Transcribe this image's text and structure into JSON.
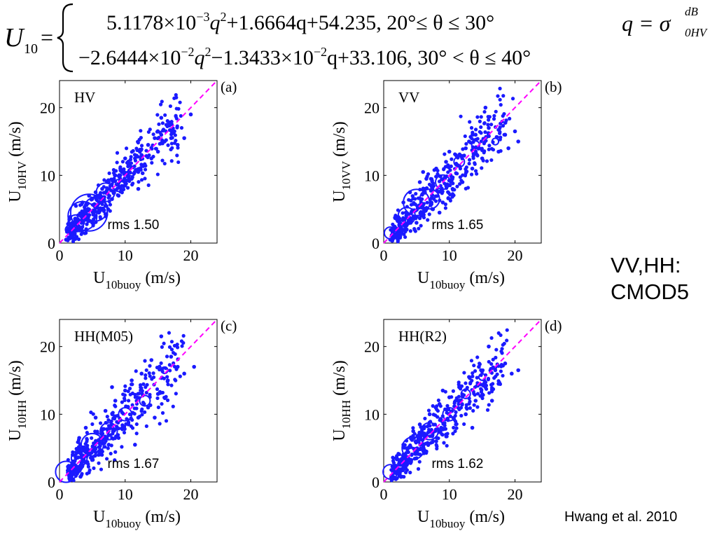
{
  "formula": {
    "lhs_var": "U",
    "lhs_sub": "10",
    "eq": "=",
    "case1": {
      "c1": "5.1178×10",
      "e1": "−3",
      "t1": "q",
      "p1": "2",
      "rest": "+1.6664q+54.235,  20°≤ θ ≤ 30°"
    },
    "case2": {
      "c1": "−2.6444×10",
      "e1": "−2",
      "t1": "q",
      "p1": "2",
      "mid": "−1.3433×10",
      "e2": "−2",
      "rest": "q+33.106,  30° < θ ≤ 40°"
    },
    "qdef": {
      "lhs": "q = σ",
      "sup": "dB",
      "sub": "0HV"
    }
  },
  "chart_data": [
    {
      "type": "scatter",
      "panel": "(a)",
      "inset_title": "HV",
      "xlabel_main": "U",
      "xlabel_sub": "10buoy",
      "xlabel_unit": "(m/s)",
      "ylabel_main": "U",
      "ylabel_sub": "10HV",
      "ylabel_unit": "(m/s)",
      "rms_label": "rms 1.50",
      "xlim": [
        0,
        24
      ],
      "ylim": [
        0,
        24
      ],
      "xticks": [
        0,
        10,
        20
      ],
      "yticks": [
        0,
        10,
        20
      ],
      "spread": 1.5,
      "circles": [
        {
          "x": 4.5,
          "y": 4.5,
          "r": 2.8
        },
        {
          "x": 3.5,
          "y": 4.0,
          "r": 2.2
        },
        {
          "x": 5.5,
          "y": 5.0,
          "r": 1.8
        },
        {
          "x": 7.0,
          "y": 7.5,
          "r": 1.4
        },
        {
          "x": 2.5,
          "y": 3.0,
          "r": 1.2
        },
        {
          "x": 9.0,
          "y": 8.5,
          "r": 0.9
        },
        {
          "x": 1.5,
          "y": 2.0,
          "r": 0.6
        },
        {
          "x": 11.0,
          "y": 10.5,
          "r": 0.6
        }
      ],
      "series": [
        {
          "x": 1.0,
          "y": 0.5
        },
        {
          "x": 2.0,
          "y": 1.0
        },
        {
          "x": 1.5,
          "y": 3.5
        },
        {
          "x": 2.5,
          "y": 5.5
        },
        {
          "x": 3.0,
          "y": 2.0
        },
        {
          "x": 3.5,
          "y": 6.0
        },
        {
          "x": 4.0,
          "y": 1.5
        },
        {
          "x": 4.5,
          "y": 7.0
        },
        {
          "x": 5.0,
          "y": 3.0
        },
        {
          "x": 5.5,
          "y": 7.5
        },
        {
          "x": 6.0,
          "y": 4.5
        },
        {
          "x": 6.5,
          "y": 8.0
        },
        {
          "x": 7.0,
          "y": 5.5
        },
        {
          "x": 7.5,
          "y": 9.0
        },
        {
          "x": 8.0,
          "y": 6.5
        },
        {
          "x": 8.5,
          "y": 10.0
        },
        {
          "x": 9.0,
          "y": 7.0
        },
        {
          "x": 9.5,
          "y": 10.5
        },
        {
          "x": 10.0,
          "y": 8.5
        },
        {
          "x": 10.5,
          "y": 11.5
        },
        {
          "x": 11.0,
          "y": 9.5
        },
        {
          "x": 11.5,
          "y": 12.5
        },
        {
          "x": 12.0,
          "y": 10.5
        },
        {
          "x": 12.5,
          "y": 13.0
        },
        {
          "x": 13.0,
          "y": 11.5
        },
        {
          "x": 13.5,
          "y": 14.5
        },
        {
          "x": 14.0,
          "y": 12.5
        },
        {
          "x": 14.5,
          "y": 15.5
        },
        {
          "x": 15.0,
          "y": 13.5
        },
        {
          "x": 15.5,
          "y": 16.0
        },
        {
          "x": 16.0,
          "y": 15.0
        },
        {
          "x": 16.5,
          "y": 17.5
        },
        {
          "x": 17.0,
          "y": 15.5
        },
        {
          "x": 17.5,
          "y": 16.5
        },
        {
          "x": 18.0,
          "y": 14.5
        },
        {
          "x": 20.0,
          "y": 19.0
        },
        {
          "x": 19.0,
          "y": 15.5
        },
        {
          "x": 15.5,
          "y": 18.5
        },
        {
          "x": 10.0,
          "y": 12.5
        },
        {
          "x": 12.0,
          "y": 8.0
        }
      ]
    },
    {
      "type": "scatter",
      "panel": "(b)",
      "inset_title": "VV",
      "xlabel_main": "U",
      "xlabel_sub": "10buoy",
      "xlabel_unit": "(m/s)",
      "ylabel_main": "U",
      "ylabel_sub": "10VV",
      "ylabel_unit": "(m/s)",
      "rms_label": "rms 1.65",
      "xlim": [
        0,
        24
      ],
      "ylim": [
        0,
        24
      ],
      "xticks": [
        0,
        10,
        20
      ],
      "yticks": [
        0,
        10,
        20
      ],
      "spread": 1.7,
      "circles": [
        {
          "x": 1.0,
          "y": 1.5,
          "r": 0.9
        },
        {
          "x": 5.0,
          "y": 6.0,
          "r": 2.0
        },
        {
          "x": 7.0,
          "y": 6.5,
          "r": 1.5
        },
        {
          "x": 3.5,
          "y": 4.0,
          "r": 1.3
        },
        {
          "x": 9.0,
          "y": 9.0,
          "r": 1.1
        },
        {
          "x": 11.5,
          "y": 12.0,
          "r": 0.8
        },
        {
          "x": 14.0,
          "y": 14.5,
          "r": 0.6
        },
        {
          "x": 17.0,
          "y": 15.0,
          "r": 0.5
        }
      ],
      "series": [
        {
          "x": 1.0,
          "y": 0.5
        },
        {
          "x": 2.0,
          "y": 3.5
        },
        {
          "x": 2.5,
          "y": 1.0
        },
        {
          "x": 3.0,
          "y": 6.0
        },
        {
          "x": 3.5,
          "y": 2.0
        },
        {
          "x": 4.0,
          "y": 7.5
        },
        {
          "x": 5.0,
          "y": 3.0
        },
        {
          "x": 5.5,
          "y": 9.0
        },
        {
          "x": 6.0,
          "y": 4.0
        },
        {
          "x": 6.5,
          "y": 9.5
        },
        {
          "x": 7.5,
          "y": 5.0
        },
        {
          "x": 8.0,
          "y": 11.0
        },
        {
          "x": 9.0,
          "y": 6.0
        },
        {
          "x": 9.5,
          "y": 12.0
        },
        {
          "x": 10.5,
          "y": 8.0
        },
        {
          "x": 11.0,
          "y": 13.0
        },
        {
          "x": 12.0,
          "y": 9.0
        },
        {
          "x": 12.5,
          "y": 14.0
        },
        {
          "x": 13.5,
          "y": 11.0
        },
        {
          "x": 14.0,
          "y": 16.0
        },
        {
          "x": 15.0,
          "y": 12.5
        },
        {
          "x": 15.5,
          "y": 20.0
        },
        {
          "x": 16.0,
          "y": 17.0
        },
        {
          "x": 17.5,
          "y": 13.5
        },
        {
          "x": 18.5,
          "y": 16.0
        },
        {
          "x": 20.0,
          "y": 16.5
        },
        {
          "x": 20.5,
          "y": 15.0
        },
        {
          "x": 19.0,
          "y": 14.0
        },
        {
          "x": 13.0,
          "y": 15.0
        },
        {
          "x": 10.0,
          "y": 13.5
        },
        {
          "x": 8.5,
          "y": 4.5
        },
        {
          "x": 6.0,
          "y": 10.5
        }
      ]
    },
    {
      "type": "scatter",
      "panel": "(c)",
      "inset_title": "HH(M05)",
      "xlabel_main": "U",
      "xlabel_sub": "10buoy",
      "xlabel_unit": "(m/s)",
      "ylabel_main": "U",
      "ylabel_sub": "10HH",
      "ylabel_unit": "(m/s)",
      "rms_label": "rms 1.67",
      "xlim": [
        0,
        24
      ],
      "ylim": [
        0,
        24
      ],
      "xticks": [
        0,
        10,
        20
      ],
      "yticks": [
        0,
        10,
        20
      ],
      "spread": 1.8,
      "circles": [
        {
          "x": 1.0,
          "y": 1.5,
          "r": 1.6
        },
        {
          "x": 5.0,
          "y": 5.5,
          "r": 1.7
        },
        {
          "x": 7.5,
          "y": 7.5,
          "r": 1.3
        },
        {
          "x": 3.0,
          "y": 3.5,
          "r": 1.2
        },
        {
          "x": 10.0,
          "y": 10.0,
          "r": 1.0
        },
        {
          "x": 13.0,
          "y": 12.0,
          "r": 0.8
        },
        {
          "x": 16.0,
          "y": 16.5,
          "r": 0.5
        }
      ],
      "series": [
        {
          "x": 1.5,
          "y": 0.5
        },
        {
          "x": 2.0,
          "y": 4.0
        },
        {
          "x": 2.5,
          "y": 1.5
        },
        {
          "x": 3.0,
          "y": 6.5
        },
        {
          "x": 3.5,
          "y": 2.5
        },
        {
          "x": 4.0,
          "y": 8.0
        },
        {
          "x": 5.0,
          "y": 3.5
        },
        {
          "x": 5.5,
          "y": 9.5
        },
        {
          "x": 6.0,
          "y": 4.5
        },
        {
          "x": 7.0,
          "y": 10.5
        },
        {
          "x": 7.5,
          "y": 5.5
        },
        {
          "x": 8.5,
          "y": 12.0
        },
        {
          "x": 9.0,
          "y": 6.5
        },
        {
          "x": 10.0,
          "y": 13.5
        },
        {
          "x": 10.5,
          "y": 8.5
        },
        {
          "x": 11.0,
          "y": 15.0
        },
        {
          "x": 12.0,
          "y": 9.5
        },
        {
          "x": 12.5,
          "y": 16.0
        },
        {
          "x": 13.5,
          "y": 11.0
        },
        {
          "x": 14.0,
          "y": 18.0
        },
        {
          "x": 15.0,
          "y": 13.0
        },
        {
          "x": 15.5,
          "y": 21.5
        },
        {
          "x": 16.5,
          "y": 15.0
        },
        {
          "x": 17.0,
          "y": 18.5
        },
        {
          "x": 18.0,
          "y": 17.0
        },
        {
          "x": 19.0,
          "y": 16.0
        },
        {
          "x": 20.5,
          "y": 17.0
        },
        {
          "x": 11.5,
          "y": 5.5
        },
        {
          "x": 8.0,
          "y": 14.0
        },
        {
          "x": 14.5,
          "y": 9.5
        }
      ]
    },
    {
      "type": "scatter",
      "panel": "(d)",
      "inset_title": "HH(R2)",
      "xlabel_main": "U",
      "xlabel_sub": "10buoy",
      "xlabel_unit": "(m/s)",
      "ylabel_main": "U",
      "ylabel_sub": "10HH",
      "ylabel_unit": "(m/s)",
      "rms_label": "rms 1.62",
      "xlim": [
        0,
        24
      ],
      "ylim": [
        0,
        24
      ],
      "xticks": [
        0,
        10,
        20
      ],
      "yticks": [
        0,
        10,
        20
      ],
      "spread": 1.6,
      "circles": [
        {
          "x": 1.0,
          "y": 1.5,
          "r": 1.1
        },
        {
          "x": 4.5,
          "y": 5.0,
          "r": 1.7
        },
        {
          "x": 7.0,
          "y": 7.5,
          "r": 1.3
        },
        {
          "x": 2.5,
          "y": 3.0,
          "r": 1.0
        },
        {
          "x": 10.0,
          "y": 10.0,
          "r": 1.0
        },
        {
          "x": 12.5,
          "y": 13.0,
          "r": 0.7
        },
        {
          "x": 15.0,
          "y": 15.5,
          "r": 0.5
        }
      ],
      "series": [
        {
          "x": 1.5,
          "y": 0.5
        },
        {
          "x": 2.0,
          "y": 3.5
        },
        {
          "x": 2.5,
          "y": 1.5
        },
        {
          "x": 3.0,
          "y": 5.5
        },
        {
          "x": 3.5,
          "y": 2.5
        },
        {
          "x": 4.5,
          "y": 7.5
        },
        {
          "x": 5.0,
          "y": 3.5
        },
        {
          "x": 5.5,
          "y": 8.5
        },
        {
          "x": 6.5,
          "y": 4.5
        },
        {
          "x": 7.0,
          "y": 10.0
        },
        {
          "x": 8.0,
          "y": 6.0
        },
        {
          "x": 8.5,
          "y": 11.5
        },
        {
          "x": 9.5,
          "y": 7.0
        },
        {
          "x": 10.0,
          "y": 12.5
        },
        {
          "x": 11.0,
          "y": 8.5
        },
        {
          "x": 11.5,
          "y": 14.0
        },
        {
          "x": 12.5,
          "y": 10.0
        },
        {
          "x": 13.0,
          "y": 15.5
        },
        {
          "x": 14.0,
          "y": 12.0
        },
        {
          "x": 14.5,
          "y": 17.0
        },
        {
          "x": 15.5,
          "y": 14.0
        },
        {
          "x": 16.0,
          "y": 20.0
        },
        {
          "x": 17.0,
          "y": 16.5
        },
        {
          "x": 17.5,
          "y": 14.5
        },
        {
          "x": 18.5,
          "y": 17.5
        },
        {
          "x": 19.5,
          "y": 16.0
        },
        {
          "x": 20.5,
          "y": 16.5
        },
        {
          "x": 13.5,
          "y": 8.0
        },
        {
          "x": 9.0,
          "y": 13.5
        },
        {
          "x": 16.5,
          "y": 12.0
        }
      ]
    }
  ],
  "styles": {
    "marker_color": "#1a1aff",
    "diagonal_color": "#ff00ff",
    "axis_color": "#000000"
  },
  "side_note": {
    "line1": "VV,HH:",
    "line2": "CMOD5"
  },
  "citation": "Hwang et al. 2010"
}
